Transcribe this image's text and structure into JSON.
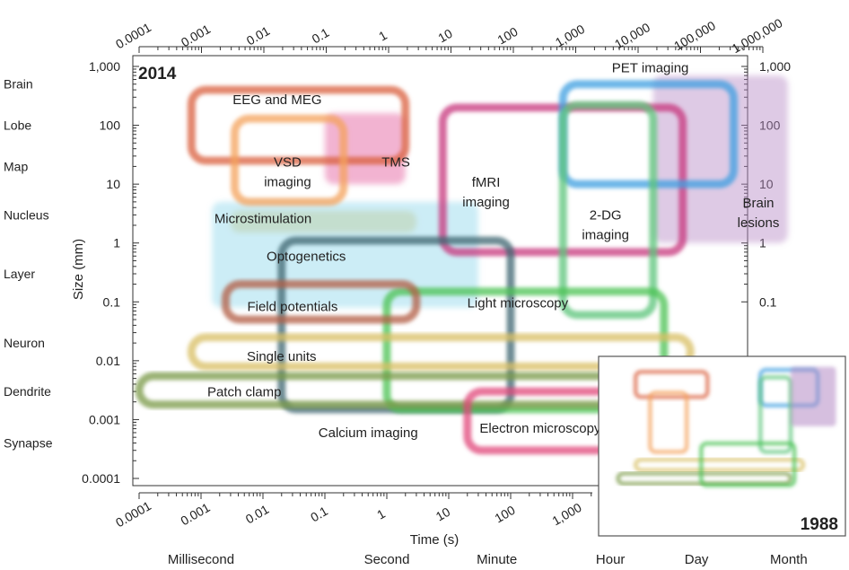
{
  "chart_data": {
    "type": "area",
    "title": "",
    "xlabel": "Time (s)",
    "ylabel": "Size (mm)",
    "x_scale": "log",
    "y_scale": "log",
    "xlim": [
      3e-05,
      3000000
    ],
    "ylim": [
      5e-05,
      2000
    ],
    "x_ticks": [
      0.0001,
      0.001,
      0.01,
      0.1,
      1,
      10,
      100,
      1000,
      10000,
      100000,
      1000000
    ],
    "x_tick_labels": [
      "0.0001",
      "0.001",
      "0.01",
      "0.1",
      "1",
      "10",
      "100",
      "1,000",
      "10,000",
      "100,000",
      "1,000,000"
    ],
    "y_ticks": [
      0.0001,
      0.001,
      0.01,
      0.1,
      1,
      10,
      100,
      1000
    ],
    "y_tick_labels": [
      "0.0001",
      "0.001",
      "0.01",
      "0.1",
      "1",
      "10",
      "100",
      "1,000"
    ],
    "right_y_tick_labels": [
      "0.1",
      "1",
      "10",
      "100",
      "1,000"
    ],
    "year_main": "2014",
    "year_inset": "1988",
    "size_levels": [
      {
        "label": "Brain",
        "y": 500
      },
      {
        "label": "Lobe",
        "y": 100
      },
      {
        "label": "Map",
        "y": 20
      },
      {
        "label": "Nucleus",
        "y": 3
      },
      {
        "label": "Layer",
        "y": 0.3
      },
      {
        "label": "Neuron",
        "y": 0.02
      },
      {
        "label": "Dendrite",
        "y": 0.003
      },
      {
        "label": "Synapse",
        "y": 0.0004
      }
    ],
    "time_landmarks": [
      {
        "label": "Millisecond",
        "x": 0.001
      },
      {
        "label": "Second",
        "x": 1
      },
      {
        "label": "Minute",
        "x": 60
      },
      {
        "label": "Hour",
        "x": 3600
      },
      {
        "label": "Day",
        "x": 86400
      },
      {
        "label": "Month",
        "x": 2600000
      }
    ],
    "series": [
      {
        "name": "EEG and MEG",
        "color": "#d9603f",
        "style": "outline",
        "x": [
          0.0007,
          2
        ],
        "y": [
          25,
          400
        ],
        "label_x": 0.017,
        "label_y": 230
      },
      {
        "name": "VSD imaging",
        "color": "#f4a15c",
        "style": "outline",
        "x": [
          0.0035,
          0.2
        ],
        "y": [
          5,
          130
        ],
        "label_x": 0.025,
        "label_y": 20
      },
      {
        "name": "TMS",
        "color": "#e3579a",
        "style": "fill",
        "x": [
          0.1,
          2
        ],
        "y": [
          10,
          160
        ],
        "label_x": 1.4,
        "label_y": 20
      },
      {
        "name": "fMRI imaging",
        "color": "#c7357c",
        "style": "outline",
        "x": [
          8,
          60000
        ],
        "y": [
          0.7,
          200
        ],
        "label_x": 40,
        "label_y": 9
      },
      {
        "name": "PET imaging",
        "color": "#3f9fe0",
        "style": "outline",
        "x": [
          700,
          400000
        ],
        "y": [
          10,
          500
        ],
        "label_x": 18000,
        "label_y": 800
      },
      {
        "name": "2-DG imaging",
        "color": "#5cc47a",
        "style": "outline",
        "x": [
          700,
          20000
        ],
        "y": [
          0.06,
          220
        ],
        "label_x": 3400,
        "label_y": 2.5
      },
      {
        "name": "Brain lesions",
        "color": "#b58ac5",
        "style": "fill",
        "x": [
          20000,
          3000000
        ],
        "y": [
          1,
          700
        ],
        "label_x": 1000000,
        "label_y": 4
      },
      {
        "name": "Microstimulation",
        "color": "#e0c25a",
        "style": "fill",
        "x": [
          0.003,
          3
        ],
        "y": [
          1.5,
          3.5
        ],
        "label_x": 0.01,
        "label_y": 2.2
      },
      {
        "name": "Optogenetics",
        "color": "#8fd6ea",
        "style": "fill",
        "x": [
          0.0015,
          30
        ],
        "y": [
          0.08,
          5
        ],
        "label_x": 0.05,
        "label_y": 0.5
      },
      {
        "name": "Calcium imaging",
        "color": "#3d6670",
        "style": "outline",
        "x": [
          0.02,
          100
        ],
        "y": [
          0.0015,
          1.1
        ],
        "label_x": 0.5,
        "label_y": 0.0005
      },
      {
        "name": "Light microscopy",
        "color": "#49c253",
        "style": "outline",
        "x": [
          1,
          30000
        ],
        "y": [
          0.0015,
          0.15
        ],
        "label_x": 130,
        "label_y": 0.08
      },
      {
        "name": "Field potentials",
        "color": "#b25d44",
        "style": "outline",
        "x": [
          0.0025,
          3
        ],
        "y": [
          0.05,
          0.2
        ],
        "label_x": 0.03,
        "label_y": 0.07
      },
      {
        "name": "Single units",
        "color": "#d8bf64",
        "style": "outline",
        "x": [
          0.0007,
          80000
        ],
        "y": [
          0.008,
          0.025
        ],
        "label_x": 0.02,
        "label_y": 0.01
      },
      {
        "name": "Patch clamp",
        "color": "#7a9a48",
        "style": "outline",
        "x": [
          0.0001,
          20000
        ],
        "y": [
          0.0018,
          0.0055
        ],
        "label_x": 0.005,
        "label_y": 0.0025
      },
      {
        "name": "Electron microscopy",
        "color": "#e0457a",
        "style": "outline",
        "x": [
          20,
          150000
        ],
        "y": [
          0.0003,
          0.003
        ],
        "label_x": 300,
        "label_y": 0.0006
      }
    ],
    "inset_series": [
      {
        "name": "EEG and MEG",
        "color": "#d9603f",
        "x": [
          0.0007,
          2
        ],
        "y": [
          25,
          400
        ]
      },
      {
        "name": "Single units",
        "color": "#d8bf64",
        "x": [
          0.0007,
          80000
        ],
        "y": [
          0.008,
          0.025
        ]
      },
      {
        "name": "Patch clamp",
        "color": "#7a9a48",
        "x": [
          0.0001,
          20000
        ],
        "y": [
          0.0018,
          0.0055
        ]
      },
      {
        "name": "VSD imaging",
        "color": "#f4a15c",
        "x": [
          0.0035,
          0.2
        ],
        "y": [
          0.06,
          40
        ]
      },
      {
        "name": "PET imaging",
        "color": "#3f9fe0",
        "x": [
          700,
          400000
        ],
        "y": [
          10,
          500
        ]
      },
      {
        "name": "2-DG imaging",
        "color": "#5cc47a",
        "x": [
          700,
          20000
        ],
        "y": [
          0.06,
          220
        ]
      },
      {
        "name": "Brain lesions",
        "color": "#b58ac5",
        "x": [
          20000,
          3000000
        ],
        "y": [
          1,
          700
        ]
      },
      {
        "name": "Light microscopy",
        "color": "#49c253",
        "x": [
          1,
          30000
        ],
        "y": [
          0.0015,
          0.15
        ]
      }
    ]
  }
}
